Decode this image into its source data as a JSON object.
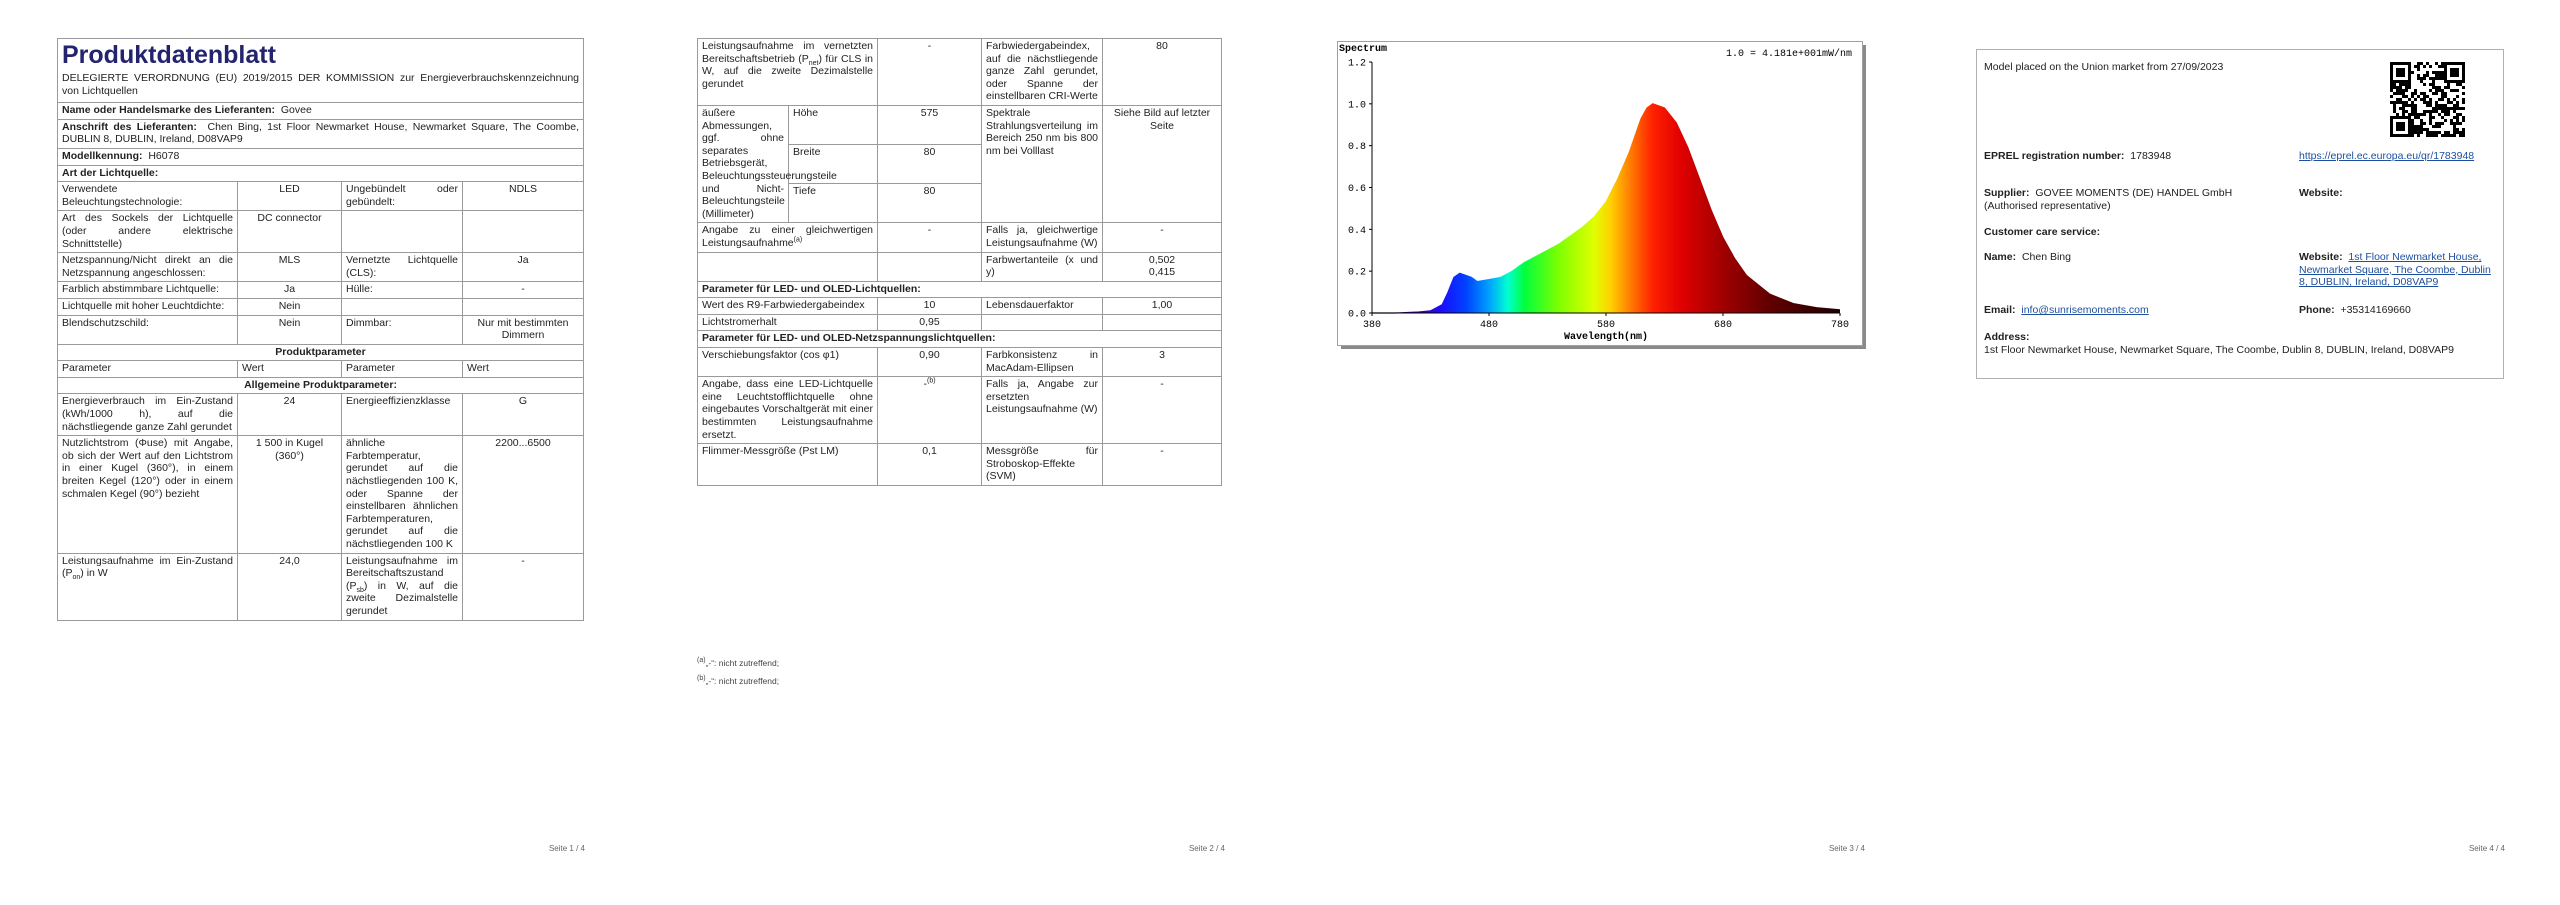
{
  "pages": [
    {
      "title": "Produktdatenblatt",
      "subtitle": "DELEGIERTE VERORDNUNG (EU) 2019/2015 DER KOMMISSION zur Energieverbrauchskennzeichnung von Lichtquellen",
      "supplier_name": {
        "label": "Name oder Handelsmarke des Lieferanten:",
        "value": "Govee"
      },
      "supplier_address": {
        "label": "Anschrift des Lieferanten:",
        "value": "Chen Bing, 1st Floor Newmarket House, Newmarket Square, The Coombe, DUBLIN 8, DUBLIN, Ireland, D08VAP9"
      },
      "model": {
        "label": "Modellkennung:",
        "value": "H6078"
      },
      "light_source_heading": "Art der Lichtquelle:",
      "light_source_rows": [
        [
          "Verwendete Beleuchtungstechnologie:",
          "LED",
          "Ungebündelt oder gebündelt:",
          "NDLS"
        ],
        [
          "Art des Sockels der Lichtquelle (oder andere elektrische Schnittstelle)",
          "DC connector",
          null,
          null
        ],
        [
          "Netzspannung/Nicht direkt an die Netzspannung angeschlossen:",
          "MLS",
          "Vernetzte Lichtquelle (CLS):",
          "Ja"
        ],
        [
          "Farblich abstimmbare Lichtquelle:",
          "Ja",
          "Hülle:",
          "-"
        ],
        [
          "Lichtquelle mit hoher Leuchtdichte:",
          "Nein",
          null,
          null
        ],
        [
          "Blendschutzschild:",
          "Nein",
          "Dimmbar:",
          "Nur mit bestimmten Dimmern"
        ]
      ],
      "product_params_heading": "Produktparameter",
      "param_header": [
        "Parameter",
        "Wert",
        "Parameter",
        "Wert"
      ],
      "general_heading": "Allgemeine Produktparameter:",
      "general_rows": [
        [
          "Energieverbrauch im Ein-Zustand (kWh/1000 h), auf die nächstliegende ganze Zahl gerundet",
          "24",
          "Energieeffizienzklasse",
          "G"
        ],
        [
          "Nutzlichtstrom (Φuse) mit Angabe, ob sich der Wert auf den Lichtstrom in einer Kugel (360°), in einem breiten Kegel (120°) oder in einem schmalen Kegel (90°) bezieht",
          "1 500 in Kugel (360°)",
          "ähnliche Farbtemperatur, gerundet auf die nächstliegenden 100 K, oder Spanne der einstellbaren ähnlichen Farbtemperaturen, gerundet auf die nächstliegenden 100 K",
          "2200...6500"
        ],
        [
          [
            "Leistungsaufnahme im Ein-Zustand (P",
            {
              "sub": "on"
            },
            ") in W"
          ],
          "24,0",
          [
            "Leistungsaufnahme im Bereitschaftszustand (P",
            {
              "sub": "sb"
            },
            ") in W, auf die zweite Dezimalstelle gerundet"
          ],
          "-"
        ]
      ],
      "footer": "Seite 1 / 4"
    },
    {
      "rows": [
        [
          [
            "Leistungsaufnahme im vernetzten Bereitschaftsbetrieb (P",
            {
              "sub": "net"
            },
            ") für CLS in W, auf die zweite Dezimalstelle gerundet"
          ],
          "-",
          "Farbwiedergabeindex, auf die nächstliegende ganze Zahl gerundet, oder Spanne der einstellbaren CRI-Werte",
          "80"
        ],
        [
          "äußere Abmessungen, ggf. ohne separates Betriebsgerät, Beleuchtungssteuerungsteile und Nicht-Beleuchtungsteile (Millimeter)",
          "Höhe",
          "575",
          "Spektrale Strahlungsverteilung im Bereich 250 nm bis 800 nm bei Volllast",
          "Siehe Bild auf letzter Seite"
        ],
        [
          "Breite",
          "80"
        ],
        [
          "Tiefe",
          "80"
        ],
        [
          [
            "Angabe zu einer gleichwertigen Leistungsaufnahme",
            {
              "sup": "(a)"
            }
          ],
          "-",
          "Falls ja, gleichwertige Leistungsaufnahme (W)",
          "-"
        ],
        [
          null,
          null,
          "Farbwertanteile (x und y)",
          "0,502\n0,415"
        ],
        [
          "Parameter für LED- und OLED-Lichtquellen:"
        ],
        [
          "Wert des R9-Farbwiedergabeindex",
          "10",
          "Lebensdauerfaktor",
          "1,00"
        ],
        [
          "Lichtstromerhalt",
          "0,95",
          null,
          null
        ],
        [
          "Parameter für LED- und OLED-Netzspannungslichtquellen:"
        ],
        [
          "Verschiebungsfaktor (cos φ1)",
          "0,90",
          "Farbkonsistenz in MacAdam-Ellipsen",
          "3"
        ],
        [
          "Angabe, dass eine LED-Lichtquelle eine Leuchtstofflichtquelle ohne eingebautes Vorschaltgerät mit einer bestimmten Leistungsaufnahme ersetzt.",
          [
            "-",
            {
              "sup": "(b)"
            }
          ],
          "Falls ja, Angabe zur ersetzten Leistungsaufnahme (W)",
          "-"
        ],
        [
          "Flimmer-Messgröße (Pst LM)",
          "0,1",
          "Messgröße für Stroboskop-Effekte (SVM)",
          "-"
        ]
      ],
      "footnotes": [
        [
          {
            "sup": "(a)"
          },
          "„-“: nicht zutreffend;"
        ],
        [
          {
            "sup": "(b)"
          },
          "„-“: nicht zutreffend;"
        ]
      ],
      "footer": "Seite 2 / 4"
    },
    {
      "footer": "Seite 3 / 4"
    },
    {
      "placed": "Model placed on the Union market from 27/09/2023",
      "eprel": {
        "label": "EPREL registration number:",
        "value": "1783948"
      },
      "eprel_link": "https://eprel.ec.europa.eu/qr/1783948",
      "supplier": {
        "label": "Supplier:",
        "value": "GOVEE MOMENTS (DE) HANDEL GmbH (Authorised representative)"
      },
      "supplier_website_label": "Website:",
      "customer_care": "Customer care service:",
      "name": {
        "label": "Name:",
        "value": "Chen Bing"
      },
      "website": {
        "label": "Website:",
        "value": "1st Floor Newmarket House, Newmarket Square, The Coombe, Dublin 8, DUBLIN, Ireland, D08VAP9"
      },
      "email": {
        "label": "Email:",
        "value": "info@sunrisemoments.com"
      },
      "phone": {
        "label": "Phone:",
        "value": "+35314169660"
      },
      "address_label": "Address:",
      "address": "1st Floor Newmarket House, Newmarket Square, The Coombe, Dublin 8, DUBLIN, Ireland, D08VAP9",
      "footer": "Seite 4 / 4"
    }
  ],
  "chart_data": {
    "type": "area",
    "title": "Spectrum",
    "annotation": "1.0 = 4.181e+001mW/nm",
    "x_label": "Wavelength(nm)",
    "x": [
      380,
      400,
      420,
      430,
      440,
      445,
      450,
      455,
      460,
      465,
      470,
      480,
      490,
      500,
      510,
      520,
      530,
      540,
      550,
      560,
      570,
      580,
      590,
      600,
      610,
      615,
      620,
      630,
      640,
      650,
      660,
      670,
      680,
      690,
      700,
      720,
      740,
      760,
      780
    ],
    "values": [
      0,
      0,
      0.005,
      0.01,
      0.04,
      0.1,
      0.17,
      0.19,
      0.18,
      0.17,
      0.15,
      0.16,
      0.17,
      0.2,
      0.24,
      0.27,
      0.3,
      0.33,
      0.37,
      0.41,
      0.46,
      0.53,
      0.64,
      0.77,
      0.93,
      0.98,
      1.0,
      0.98,
      0.91,
      0.79,
      0.64,
      0.49,
      0.36,
      0.26,
      0.18,
      0.09,
      0.045,
      0.025,
      0.015
    ],
    "xlim": [
      380,
      780
    ],
    "ylim": [
      0,
      1.2
    ],
    "xticks": [
      380,
      480,
      580,
      680,
      780
    ],
    "yticks": [
      {
        "value": 0,
        "label": "0.0"
      },
      0.2,
      0.4,
      0.6,
      0.8,
      {
        "value": 1,
        "label": "1.0"
      },
      1.2
    ]
  }
}
